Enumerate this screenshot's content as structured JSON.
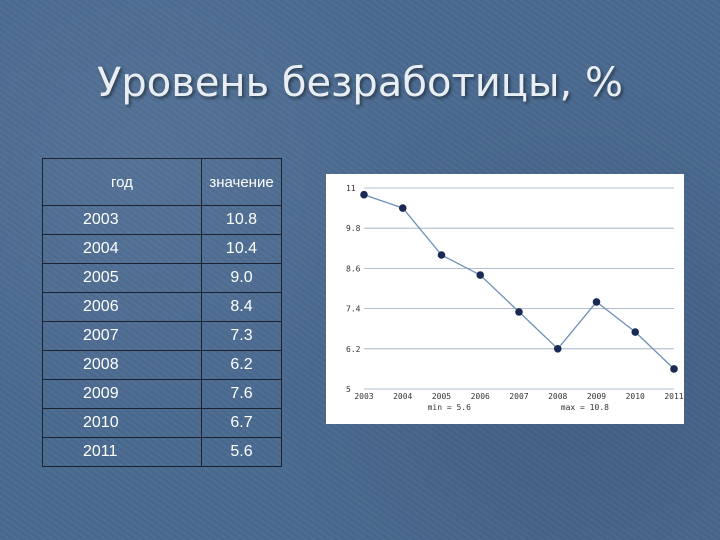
{
  "slide": {
    "title": "Уровень безработицы, %"
  },
  "table": {
    "headers": [
      "год",
      "значение"
    ],
    "rows": [
      {
        "year": "2003",
        "value": "10.8"
      },
      {
        "year": "2004",
        "value": "10.4"
      },
      {
        "year": "2005",
        "value": "9.0"
      },
      {
        "year": "2006",
        "value": "8.4"
      },
      {
        "year": "2007",
        "value": "7.3"
      },
      {
        "year": "2008",
        "value": "6.2"
      },
      {
        "year": "2009",
        "value": "7.6"
      },
      {
        "year": "2010",
        "value": "6.7"
      },
      {
        "year": "2011",
        "value": "5.6"
      }
    ]
  },
  "chart_data": {
    "type": "line",
    "x": [
      "2003",
      "2004",
      "2005",
      "2006",
      "2007",
      "2008",
      "2009",
      "2010",
      "2011"
    ],
    "series": [
      {
        "values": [
          10.8,
          10.4,
          9.0,
          8.4,
          7.3,
          6.2,
          7.6,
          6.7,
          5.6
        ]
      }
    ],
    "yticks": [
      "11",
      "9.8",
      "8.6",
      "7.4",
      "6.2",
      "5"
    ],
    "ylim": [
      5,
      11
    ],
    "grid": true,
    "min_label": "min = 5.6",
    "max_label": "max = 10.8",
    "colors": {
      "line": "#6f8fb8",
      "marker": "#1a2a55",
      "grid": "#9aaac0"
    }
  }
}
